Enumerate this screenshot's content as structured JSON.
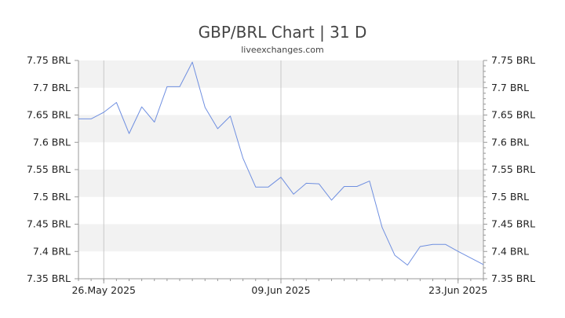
{
  "chart_data": {
    "type": "line",
    "title": "GBP/BRL Chart | 31 D",
    "subtitle": "liveexchanges.com",
    "unit": "BRL",
    "ylim": [
      7.35,
      7.75
    ],
    "y_ticks": [
      7.75,
      7.7,
      7.65,
      7.6,
      7.55,
      7.5,
      7.45,
      7.4,
      7.35
    ],
    "y_tick_labels": [
      "7.75 BRL",
      "7.7 BRL",
      "7.65 BRL",
      "7.6 BRL",
      "7.55 BRL",
      "7.5 BRL",
      "7.45 BRL",
      "7.4 BRL",
      "7.35 BRL"
    ],
    "x_ticks": [
      {
        "label": "26.May 2025",
        "index": 2
      },
      {
        "label": "09.Jun 2025",
        "index": 16
      },
      {
        "label": "23.Jun 2025",
        "index": 30
      }
    ],
    "grid": "horizontal bands, vertical lines at x ticks",
    "colors": {
      "line": "#6f8fe0",
      "band": "#f2f2f2",
      "axis": "#999999",
      "vline": "#c8c8c8"
    },
    "series": [
      {
        "values": [
          7.643,
          7.643,
          7.655,
          7.673,
          7.616,
          7.665,
          7.637,
          7.702,
          7.702,
          7.747,
          7.664,
          7.625,
          7.648,
          7.571,
          7.518,
          7.518,
          7.536,
          7.505,
          7.525,
          7.524,
          7.494,
          7.519,
          7.519,
          7.529,
          7.444,
          7.393,
          7.375,
          7.409,
          7.413,
          7.413,
          7.4,
          7.388,
          7.376
        ]
      }
    ]
  }
}
